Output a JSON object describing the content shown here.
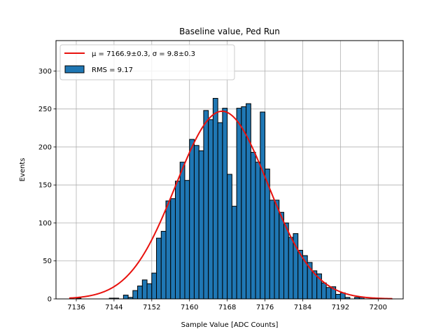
{
  "chart_data": {
    "type": "bar",
    "title": "Baseline value, Ped Run",
    "xlabel": "Sample Value [ADC Counts]",
    "ylabel": "Events",
    "xlim": [
      7131.7,
      7205.3
    ],
    "ylim": [
      0,
      340
    ],
    "x_ticks": [
      7136,
      7144,
      7152,
      7160,
      7168,
      7176,
      7184,
      7192,
      7200
    ],
    "y_ticks": [
      0,
      50,
      100,
      150,
      200,
      250,
      300
    ],
    "grid": true,
    "legend_position": "top-left",
    "bin_width": 1,
    "bin_edges_start": 7135,
    "values": [
      0,
      1,
      0,
      0,
      0,
      0,
      0,
      0,
      1,
      1,
      0,
      5,
      2,
      11,
      17,
      25,
      20,
      34,
      80,
      89,
      129,
      132,
      155,
      180,
      156,
      210,
      202,
      195,
      248,
      236,
      264,
      232,
      251,
      164,
      122,
      251,
      253,
      257,
      193,
      180,
      246,
      171,
      130,
      130,
      114,
      100,
      81,
      86,
      64,
      57,
      48,
      37,
      33,
      21,
      15,
      16,
      6,
      8,
      2,
      0,
      2,
      2,
      0
    ],
    "fit": {
      "type": "gaussian",
      "amplitude": 247,
      "mu": 7166.9,
      "sigma": 9.8,
      "x_range": [
        7134.5,
        7203
      ]
    },
    "legend": [
      {
        "kind": "line",
        "label": "μ = 7166.9±0.3, σ = 9.8±0.3",
        "color": "#e8120e"
      },
      {
        "kind": "patch",
        "label": "RMS = 9.17",
        "color": "#1f77b4"
      }
    ],
    "colors": {
      "bars": "#1f77b4",
      "bar_edge": "#000000",
      "fit": "#e8120e",
      "grid": "#b0b0b0"
    }
  }
}
